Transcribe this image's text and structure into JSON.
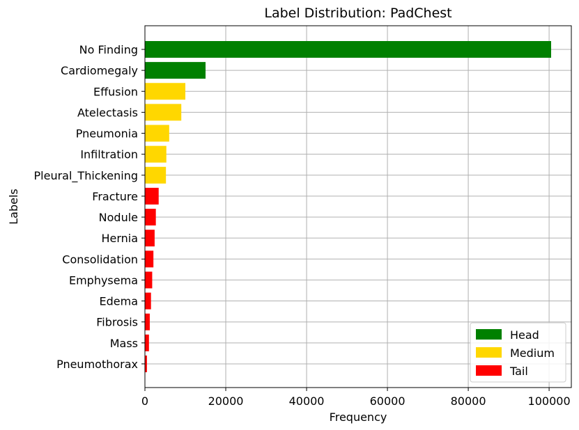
{
  "chart_data": {
    "type": "bar",
    "orientation": "horizontal",
    "title": "Label Distribution: PadChest",
    "xlabel": "Frequency",
    "ylabel": "Labels",
    "xlim": [
      0,
      105500
    ],
    "xticks": [
      0,
      20000,
      40000,
      60000,
      80000,
      100000
    ],
    "grid": true,
    "legend_position": "bottom-right",
    "groups": [
      {
        "name": "Head",
        "color": "#008000"
      },
      {
        "name": "Medium",
        "color": "#ffd700"
      },
      {
        "name": "Tail",
        "color": "#ff0000"
      }
    ],
    "categories": [
      "No Finding",
      "Cardiomegaly",
      "Effusion",
      "Atelectasis",
      "Pneumonia",
      "Infiltration",
      "Pleural_Thickening",
      "Fracture",
      "Nodule",
      "Hernia",
      "Consolidation",
      "Emphysema",
      "Edema",
      "Fibrosis",
      "Mass",
      "Pneumothorax"
    ],
    "values": [
      100500,
      15000,
      10000,
      9000,
      6000,
      5300,
      5200,
      3400,
      2700,
      2400,
      2100,
      1800,
      1500,
      1200,
      1000,
      500
    ],
    "bar_groups": [
      "Head",
      "Head",
      "Medium",
      "Medium",
      "Medium",
      "Medium",
      "Medium",
      "Tail",
      "Tail",
      "Tail",
      "Tail",
      "Tail",
      "Tail",
      "Tail",
      "Tail",
      "Tail"
    ]
  }
}
